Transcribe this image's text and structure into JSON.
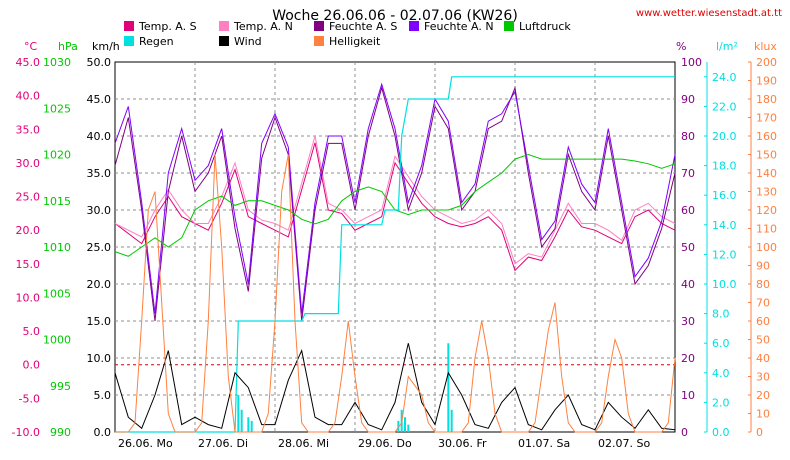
{
  "chart_data": {
    "type": "line",
    "title": "Woche 26.06.06 - 02.07.06 (KW26)",
    "source_credit": "www.wetter.wiesenstadt.at.tt",
    "x_tick_labels": [
      "26.06. Mo",
      "27.06. Di",
      "28.06. Mi",
      "29.06. Do",
      "30.06. Fr",
      "01.07. Sa",
      "02.07. So"
    ],
    "x_range_hours": [
      0,
      168
    ],
    "legend": [
      {
        "name": "Temp. A. S",
        "color": "#e0007a"
      },
      {
        "name": "Temp. A. N",
        "color": "#ff80c0"
      },
      {
        "name": "Feuchte A. S",
        "color": "#800080"
      },
      {
        "name": "Feuchte A. N",
        "color": "#8000ff"
      },
      {
        "name": "Luftdruck",
        "color": "#00c800"
      },
      {
        "name": "Regen",
        "color": "#00e0e0"
      },
      {
        "name": "Wind",
        "color": "#000000"
      },
      {
        "name": "Helligkeit",
        "color": "#ff8040"
      }
    ],
    "axes": {
      "temperature": {
        "unit": "°C",
        "color": "#e0007a",
        "range": [
          -10,
          45
        ],
        "ticks": [
          "45.0",
          "40.0",
          "35.0",
          "30.0",
          "25.0",
          "20.0",
          "15.0",
          "10.0",
          "5.0",
          "0.0",
          "-5.0",
          "-10.0"
        ]
      },
      "pressure": {
        "unit": "hPa",
        "color": "#00c800",
        "range": [
          990,
          1030
        ],
        "ticks": [
          "1030",
          "1025",
          "1020",
          "1015",
          "1010",
          "1005",
          "1000",
          "995",
          "990"
        ]
      },
      "wind": {
        "unit": "km/h",
        "color": "#000000",
        "range": [
          0,
          50
        ],
        "ticks": [
          "50.0",
          "45.0",
          "40.0",
          "35.0",
          "30.0",
          "25.0",
          "20.0",
          "15.0",
          "10.0",
          "5.0",
          "0.0"
        ]
      },
      "humidity": {
        "unit": "%",
        "color": "#800080",
        "range": [
          0,
          100
        ],
        "ticks": [
          "100",
          "90",
          "80",
          "70",
          "60",
          "50",
          "40",
          "30",
          "20",
          "10",
          "0"
        ]
      },
      "rain": {
        "unit": "l/m²",
        "color": "#00e0e0",
        "range": [
          0,
          25
        ],
        "ticks": [
          "24.0",
          "22.0",
          "20.0",
          "18.0",
          "16.0",
          "14.0",
          "12.0",
          "10.0",
          "8.0",
          "6.0",
          "4.0",
          "2.0",
          "0.0"
        ]
      },
      "brightness": {
        "unit": "klux",
        "color": "#ff8040",
        "range": [
          0,
          200
        ],
        "ticks": [
          "200",
          "190",
          "180",
          "170",
          "160",
          "150",
          "140",
          "130",
          "120",
          "110",
          "100",
          "90",
          "80",
          "70",
          "60",
          "50",
          "40",
          "30",
          "20",
          "10",
          "0"
        ]
      }
    },
    "grid": true,
    "series": [
      {
        "name": "Temp. A. S",
        "axis": "temperature",
        "color": "#e0007a",
        "x": [
          0,
          4,
          8,
          12,
          16,
          20,
          24,
          28,
          32,
          36,
          40,
          44,
          48,
          52,
          56,
          60,
          64,
          68,
          72,
          76,
          80,
          84,
          88,
          92,
          96,
          100,
          104,
          108,
          112,
          116,
          120,
          124,
          128,
          132,
          136,
          140,
          144,
          148,
          152,
          156,
          160,
          164,
          168
        ],
        "y": [
          21,
          19.5,
          18,
          22,
          25,
          22,
          21,
          20,
          24,
          29,
          22,
          21,
          20,
          19,
          26,
          33,
          23,
          22.5,
          20,
          21,
          22,
          30,
          27,
          24,
          22,
          21,
          20.5,
          21,
          22,
          20,
          14,
          16,
          15.5,
          19,
          23,
          20.5,
          20,
          19,
          18,
          22,
          23,
          21,
          20
        ]
      },
      {
        "name": "Temp. A. N",
        "axis": "temperature",
        "color": "#ff80c0",
        "x": [
          0,
          4,
          8,
          12,
          16,
          20,
          24,
          28,
          32,
          36,
          40,
          44,
          48,
          52,
          56,
          60,
          64,
          68,
          72,
          76,
          80,
          84,
          88,
          92,
          96,
          100,
          104,
          108,
          112,
          116,
          120,
          124,
          128,
          132,
          136,
          140,
          144,
          148,
          152,
          156,
          160,
          164,
          168
        ],
        "y": [
          21,
          20,
          19,
          23,
          26,
          23,
          21,
          21,
          25,
          30,
          23,
          21.5,
          21,
          20,
          27,
          34,
          24,
          23,
          21,
          22,
          23,
          31,
          28,
          25,
          23,
          22,
          21,
          21.5,
          23,
          21,
          15,
          16.5,
          16,
          20,
          24,
          21,
          21,
          20,
          18.5,
          23,
          24,
          22,
          21
        ]
      },
      {
        "name": "Feuchte A. S",
        "axis": "humidity",
        "color": "#800080",
        "x": [
          0,
          4,
          8,
          12,
          16,
          20,
          24,
          28,
          32,
          36,
          40,
          44,
          48,
          52,
          56,
          60,
          64,
          68,
          72,
          76,
          80,
          84,
          88,
          92,
          96,
          100,
          104,
          108,
          112,
          116,
          120,
          124,
          128,
          132,
          136,
          140,
          144,
          148,
          152,
          156,
          160,
          164,
          168
        ],
        "y": [
          72,
          85,
          60,
          30,
          65,
          80,
          65,
          70,
          80,
          55,
          38,
          74,
          85,
          75,
          30,
          60,
          78,
          78,
          60,
          80,
          93,
          80,
          60,
          70,
          88,
          82,
          60,
          65,
          82,
          84,
          93,
          70,
          50,
          55,
          75,
          65,
          60,
          80,
          60,
          40,
          45,
          55,
          70
        ]
      },
      {
        "name": "Feuchte A. N",
        "axis": "humidity",
        "color": "#8000ff",
        "x": [
          0,
          4,
          8,
          12,
          16,
          20,
          24,
          28,
          32,
          36,
          40,
          44,
          48,
          52,
          56,
          60,
          64,
          68,
          72,
          76,
          80,
          84,
          88,
          92,
          96,
          100,
          104,
          108,
          112,
          116,
          120,
          124,
          128,
          132,
          136,
          140,
          144,
          148,
          152,
          156,
          160,
          164,
          168
        ],
        "y": [
          78,
          88,
          62,
          32,
          70,
          82,
          68,
          72,
          82,
          58,
          40,
          78,
          86,
          77,
          32,
          62,
          80,
          80,
          62,
          82,
          94,
          82,
          62,
          72,
          90,
          84,
          62,
          67,
          84,
          86,
          92,
          72,
          52,
          57,
          77,
          67,
          62,
          82,
          62,
          42,
          47,
          57,
          75
        ]
      },
      {
        "name": "Luftdruck",
        "axis": "pressure",
        "color": "#00c800",
        "x": [
          0,
          4,
          8,
          12,
          16,
          20,
          24,
          28,
          32,
          36,
          40,
          44,
          48,
          52,
          56,
          60,
          64,
          68,
          72,
          76,
          80,
          84,
          88,
          92,
          96,
          100,
          104,
          108,
          112,
          116,
          120,
          124,
          128,
          132,
          136,
          140,
          144,
          148,
          152,
          156,
          160,
          164,
          168
        ],
        "y": [
          1009.5,
          1009,
          1010,
          1011,
          1010,
          1011,
          1014,
          1015,
          1015.5,
          1014.5,
          1015,
          1015,
          1014.5,
          1014,
          1013,
          1012.5,
          1013,
          1015,
          1016,
          1016.5,
          1016,
          1014,
          1013.5,
          1014,
          1014,
          1014,
          1014.5,
          1016,
          1017,
          1018,
          1019.5,
          1020,
          1019.5,
          1019.5,
          1019.5,
          1019.5,
          1019.5,
          1019.5,
          1019.5,
          1019.3,
          1019,
          1018.5,
          1019
        ]
      },
      {
        "name": "Regen",
        "axis": "rain",
        "color": "#00e0e0",
        "x": [
          0,
          36,
          37,
          56,
          57,
          67,
          68,
          72,
          80,
          81,
          85,
          86,
          88,
          89,
          90,
          100,
          101,
          168
        ],
        "y": [
          0,
          0,
          7.5,
          7.5,
          8,
          8,
          14,
          14,
          14,
          15,
          15,
          20,
          22.5,
          22.5,
          22.5,
          22.5,
          24,
          24
        ]
      },
      {
        "name": "Wind",
        "axis": "wind",
        "color": "#000000",
        "x": [
          0,
          4,
          8,
          12,
          16,
          20,
          24,
          28,
          32,
          36,
          40,
          44,
          48,
          52,
          56,
          60,
          64,
          68,
          72,
          76,
          80,
          84,
          88,
          92,
          96,
          100,
          104,
          108,
          112,
          116,
          120,
          124,
          128,
          132,
          136,
          140,
          144,
          148,
          152,
          156,
          160,
          164,
          168
        ],
        "y": [
          8,
          2,
          0.5,
          5,
          11,
          1,
          2,
          1,
          0.5,
          8,
          6,
          1,
          1,
          7,
          11,
          2,
          1,
          1,
          4,
          1,
          0.3,
          4,
          12,
          4,
          1,
          8,
          5,
          1,
          0.5,
          4,
          6,
          1,
          0.3,
          3,
          5,
          1,
          0.3,
          4,
          2,
          0.5,
          3,
          0.5,
          0.3
        ]
      },
      {
        "name": "Helligkeit",
        "axis": "brightness",
        "color": "#ff8040",
        "x": [
          0,
          2,
          4,
          6,
          8,
          10,
          12,
          14,
          16,
          18,
          20,
          22,
          24,
          26,
          28,
          30,
          32,
          34,
          36,
          38,
          40,
          42,
          44,
          46,
          48,
          50,
          52,
          54,
          56,
          58,
          60,
          62,
          64,
          66,
          68,
          70,
          72,
          74,
          76,
          78,
          80,
          82,
          84,
          86,
          88,
          90,
          92,
          94,
          96,
          98,
          100,
          102,
          104,
          106,
          108,
          110,
          112,
          114,
          116,
          118,
          120,
          122,
          124,
          126,
          128,
          130,
          132,
          134,
          136,
          138,
          140,
          142,
          144,
          146,
          148,
          150,
          152,
          154,
          156,
          158,
          160,
          162,
          164,
          166,
          168
        ],
        "y": [
          0,
          0,
          0,
          5,
          60,
          120,
          130,
          70,
          10,
          0,
          0,
          0,
          0,
          5,
          60,
          150,
          100,
          30,
          0,
          0,
          0,
          0,
          0,
          10,
          60,
          130,
          150,
          60,
          5,
          0,
          0,
          0,
          0,
          5,
          30,
          60,
          30,
          5,
          0,
          0,
          0,
          0,
          0,
          5,
          30,
          25,
          20,
          5,
          0,
          0,
          0,
          0,
          0,
          5,
          40,
          60,
          40,
          10,
          0,
          0,
          0,
          0,
          0,
          5,
          30,
          55,
          70,
          30,
          5,
          0,
          0,
          0,
          0,
          5,
          30,
          50,
          40,
          10,
          0,
          0,
          0,
          0,
          0,
          5,
          40
        ]
      }
    ]
  }
}
